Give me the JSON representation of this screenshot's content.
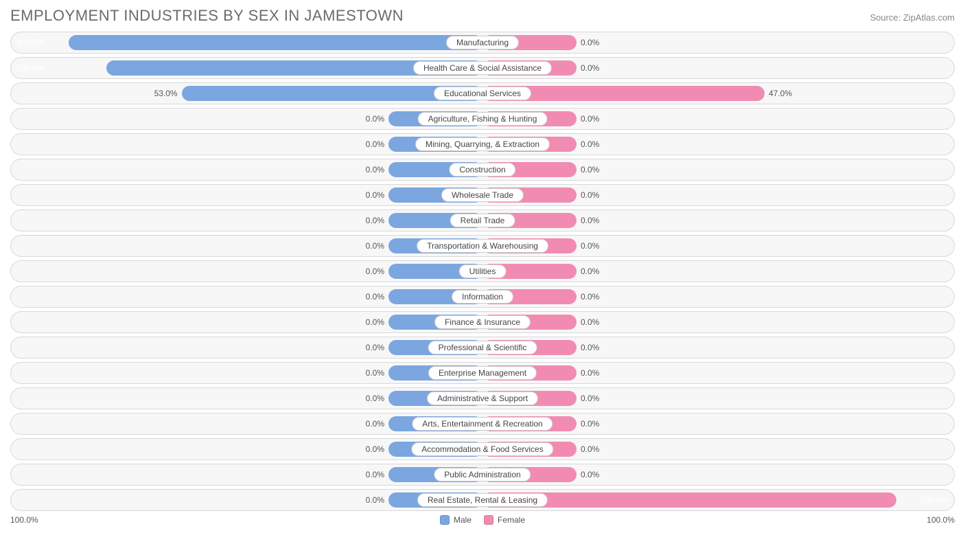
{
  "title": "EMPLOYMENT INDUSTRIES BY SEX IN JAMESTOWN",
  "source": "Source: ZipAtlas.com",
  "chart": {
    "type": "diverging-bar",
    "male_color": "#7ca6e0",
    "female_color": "#f28bb2",
    "row_bg": "#f7f7f7",
    "row_border": "#d8d8d8",
    "label_box_bg": "#ffffff",
    "label_box_border": "#cccccc",
    "axis_left": "100.0%",
    "axis_right": "100.0%",
    "default_bar_pct": 20,
    "rows": [
      {
        "label": "Manufacturing",
        "male_pct": 100.0,
        "female_pct": 0.0,
        "male_label": "100.0%",
        "female_label": "0.0%",
        "male_bar_override": 88
      },
      {
        "label": "Health Care & Social Assistance",
        "male_pct": 100.0,
        "female_pct": 0.0,
        "male_label": "100.0%",
        "female_label": "0.0%",
        "male_bar_override": 80
      },
      {
        "label": "Educational Services",
        "male_pct": 53.0,
        "female_pct": 47.0,
        "male_label": "53.0%",
        "female_label": "47.0%",
        "male_bar_override": 64,
        "female_bar_override": 60
      },
      {
        "label": "Agriculture, Fishing & Hunting",
        "male_pct": 0.0,
        "female_pct": 0.0,
        "male_label": "0.0%",
        "female_label": "0.0%"
      },
      {
        "label": "Mining, Quarrying, & Extraction",
        "male_pct": 0.0,
        "female_pct": 0.0,
        "male_label": "0.0%",
        "female_label": "0.0%"
      },
      {
        "label": "Construction",
        "male_pct": 0.0,
        "female_pct": 0.0,
        "male_label": "0.0%",
        "female_label": "0.0%"
      },
      {
        "label": "Wholesale Trade",
        "male_pct": 0.0,
        "female_pct": 0.0,
        "male_label": "0.0%",
        "female_label": "0.0%"
      },
      {
        "label": "Retail Trade",
        "male_pct": 0.0,
        "female_pct": 0.0,
        "male_label": "0.0%",
        "female_label": "0.0%"
      },
      {
        "label": "Transportation & Warehousing",
        "male_pct": 0.0,
        "female_pct": 0.0,
        "male_label": "0.0%",
        "female_label": "0.0%"
      },
      {
        "label": "Utilities",
        "male_pct": 0.0,
        "female_pct": 0.0,
        "male_label": "0.0%",
        "female_label": "0.0%"
      },
      {
        "label": "Information",
        "male_pct": 0.0,
        "female_pct": 0.0,
        "male_label": "0.0%",
        "female_label": "0.0%"
      },
      {
        "label": "Finance & Insurance",
        "male_pct": 0.0,
        "female_pct": 0.0,
        "male_label": "0.0%",
        "female_label": "0.0%"
      },
      {
        "label": "Professional & Scientific",
        "male_pct": 0.0,
        "female_pct": 0.0,
        "male_label": "0.0%",
        "female_label": "0.0%"
      },
      {
        "label": "Enterprise Management",
        "male_pct": 0.0,
        "female_pct": 0.0,
        "male_label": "0.0%",
        "female_label": "0.0%"
      },
      {
        "label": "Administrative & Support",
        "male_pct": 0.0,
        "female_pct": 0.0,
        "male_label": "0.0%",
        "female_label": "0.0%"
      },
      {
        "label": "Arts, Entertainment & Recreation",
        "male_pct": 0.0,
        "female_pct": 0.0,
        "male_label": "0.0%",
        "female_label": "0.0%"
      },
      {
        "label": "Accommodation & Food Services",
        "male_pct": 0.0,
        "female_pct": 0.0,
        "male_label": "0.0%",
        "female_label": "0.0%"
      },
      {
        "label": "Public Administration",
        "male_pct": 0.0,
        "female_pct": 0.0,
        "male_label": "0.0%",
        "female_label": "0.0%"
      },
      {
        "label": "Real Estate, Rental & Leasing",
        "male_pct": 0.0,
        "female_pct": 100.0,
        "male_label": "0.0%",
        "female_label": "100.0%",
        "female_bar_override": 88
      }
    ],
    "legend": {
      "male": "Male",
      "female": "Female"
    }
  }
}
